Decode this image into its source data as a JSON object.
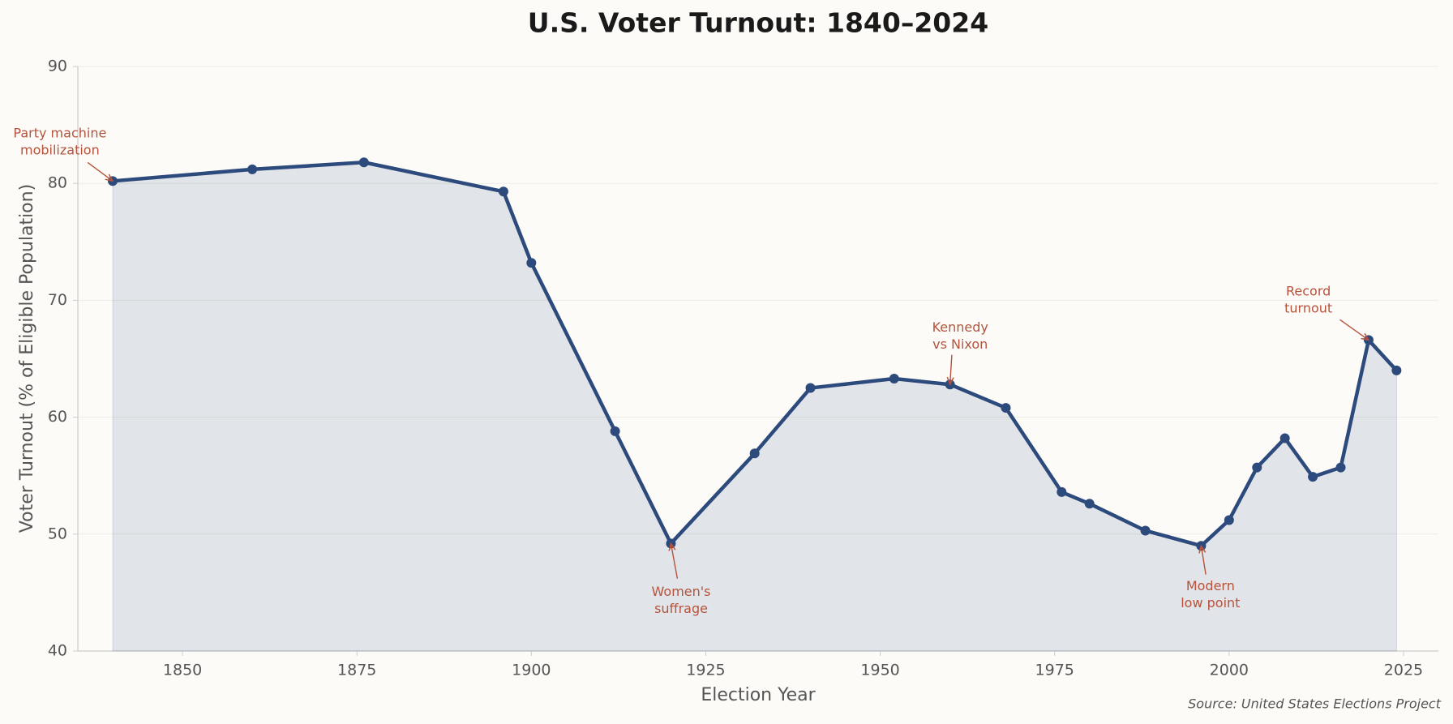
{
  "chart_data": {
    "type": "area-line",
    "title": "U.S. Voter Turnout: 1840–2024",
    "x_label": "Election Year",
    "y_label": "Voter Turnout (% of Eligible Population)",
    "source": "Source: United States Elections Project",
    "x": [
      1840,
      1860,
      1876,
      1896,
      1900,
      1912,
      1920,
      1932,
      1940,
      1952,
      1960,
      1968,
      1976,
      1980,
      1988,
      1996,
      2000,
      2004,
      2008,
      2012,
      2016,
      2020,
      2024
    ],
    "values": [
      80.2,
      81.2,
      81.8,
      79.3,
      73.2,
      58.8,
      49.2,
      56.9,
      62.5,
      63.3,
      62.8,
      60.8,
      53.6,
      52.6,
      50.3,
      49.0,
      51.2,
      55.7,
      58.2,
      54.9,
      55.7,
      66.6,
      64.0
    ],
    "color": "#2d4a7c",
    "xlim": [
      1835,
      2030
    ],
    "ylim": [
      40,
      90
    ],
    "xticks": [
      1850,
      1875,
      1900,
      1925,
      1950,
      1975,
      2000,
      2025
    ],
    "yticks": [
      40,
      50,
      60,
      70,
      80,
      90
    ],
    "grid": true,
    "annotations": [
      {
        "lines": [
          "Party machine",
          "mobilization"
        ],
        "x": 1840
      },
      {
        "lines": [
          "Women's",
          "suffrage"
        ],
        "x": 1920
      },
      {
        "lines": [
          "Kennedy",
          "vs Nixon"
        ],
        "x": 1960
      },
      {
        "lines": [
          "Modern",
          "low point"
        ],
        "x": 1996
      },
      {
        "lines": [
          "Record",
          "turnout"
        ],
        "x": 2020
      }
    ]
  }
}
